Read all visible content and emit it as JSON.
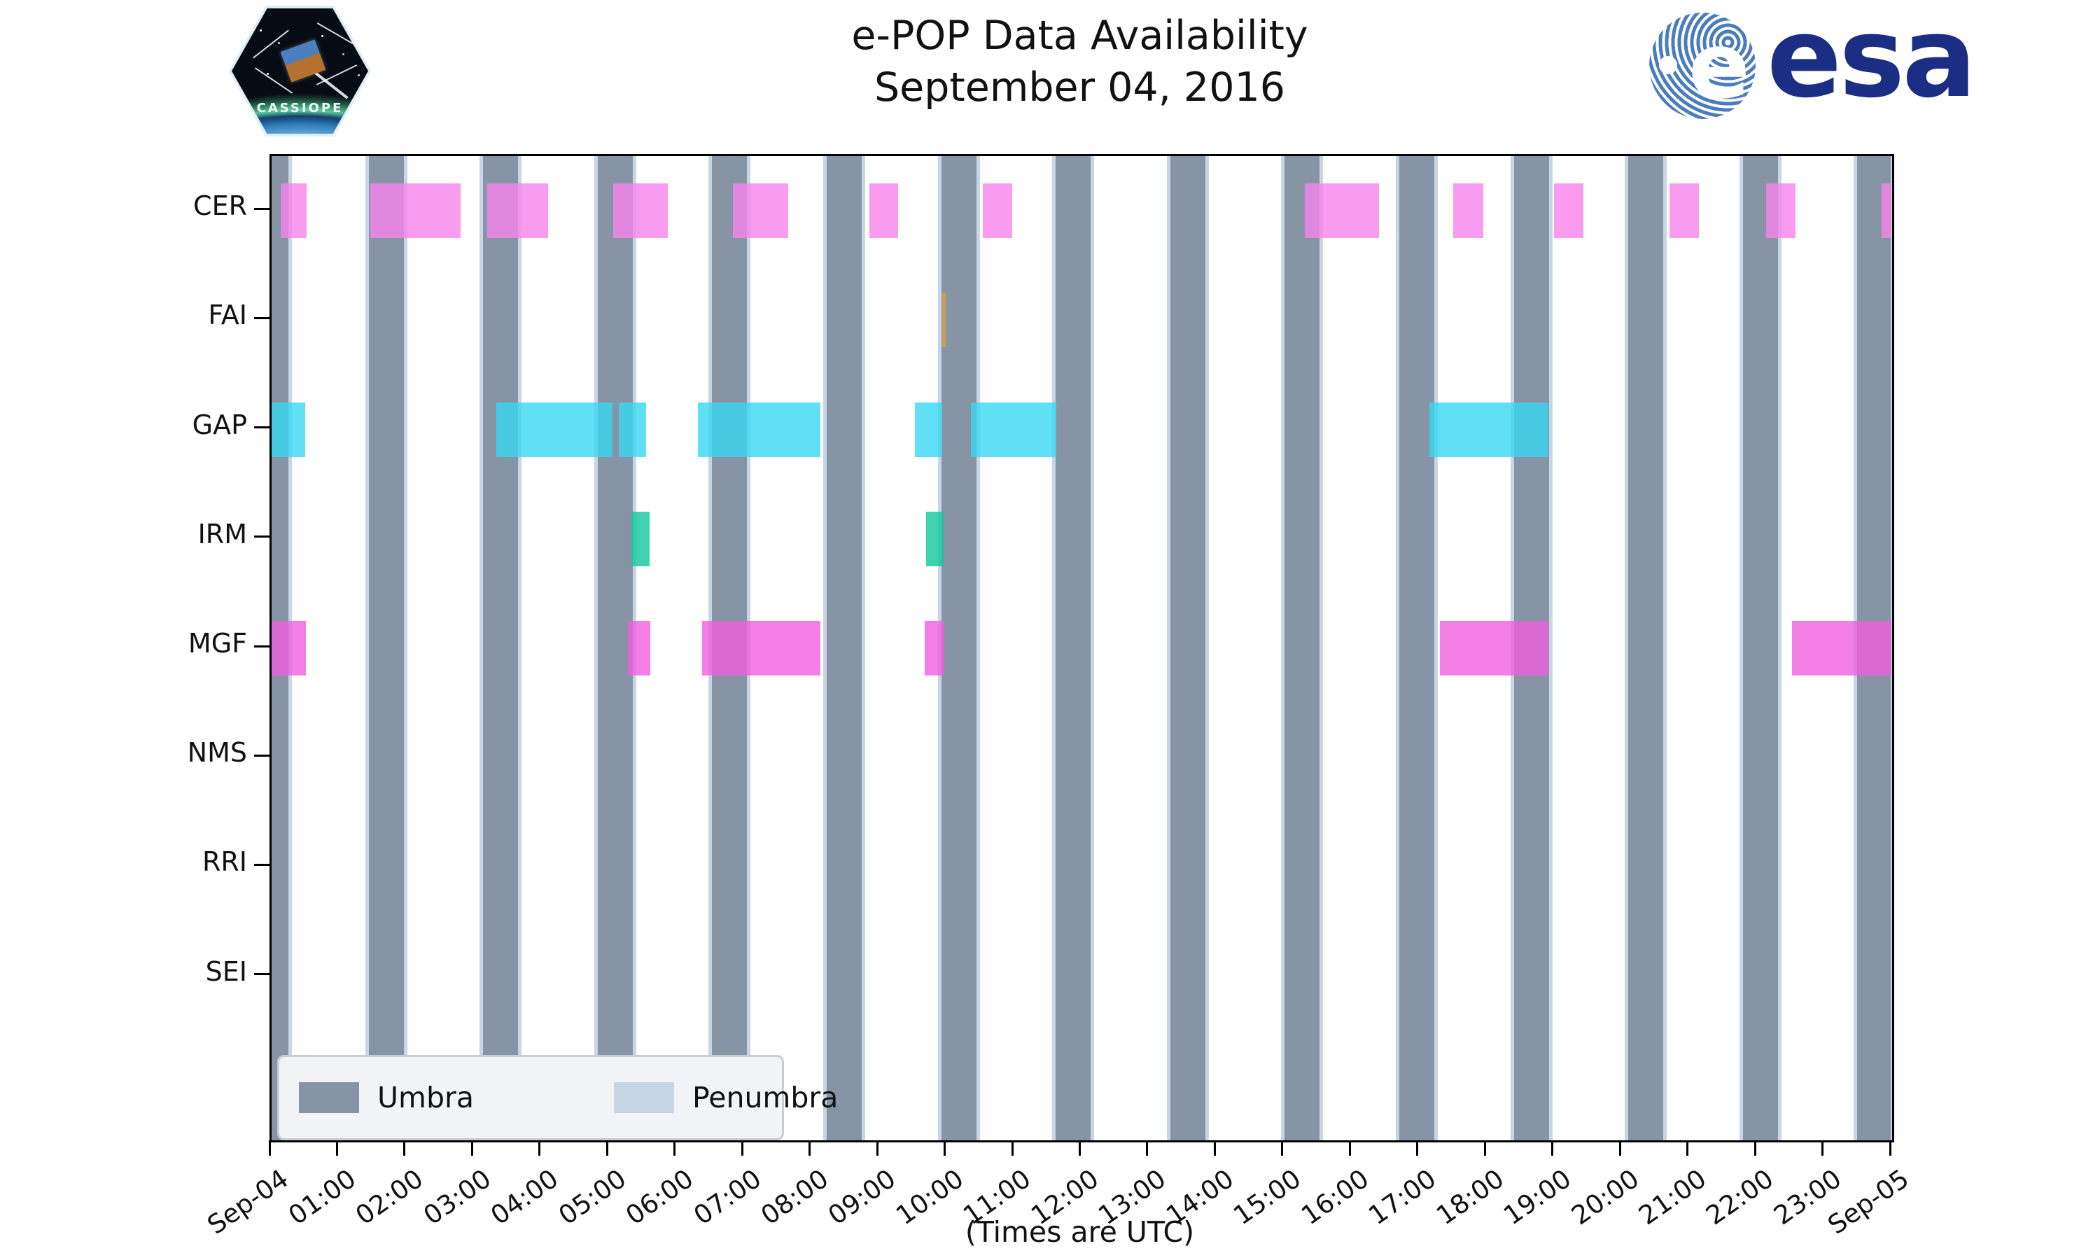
{
  "header": {
    "title_line1": "e-POP Data Availability",
    "title_line2": "September 04, 2016"
  },
  "logos": {
    "cassiope_text": "CASSIOPE",
    "esa_globe_letter": "e",
    "esa_text": "esa"
  },
  "chart_data": {
    "type": "timeline",
    "title": "e-POP Data Availability",
    "subtitle": "September 04, 2016",
    "xlabel": "(Times are UTC)",
    "x_range_hours": [
      0,
      24
    ],
    "x_tick_labels": [
      "Sep-04",
      "01:00",
      "02:00",
      "03:00",
      "04:00",
      "05:00",
      "06:00",
      "07:00",
      "08:00",
      "09:00",
      "10:00",
      "11:00",
      "12:00",
      "13:00",
      "14:00",
      "15:00",
      "16:00",
      "17:00",
      "18:00",
      "19:00",
      "20:00",
      "21:00",
      "22:00",
      "23:00",
      "Sep-05"
    ],
    "grid": false,
    "legend_position": "lower left",
    "colors": {
      "umbra": "#8694A6",
      "penumbra": "#C8D5E4",
      "cer": "#F783EC",
      "fai": "#D9A33C",
      "gap": "#39D7F2",
      "irm": "#0FC79B",
      "mgf": "#EF5EE0",
      "axis": "#000000"
    },
    "umbra_intervals": [
      [
        0.0,
        0.25
      ],
      [
        1.44,
        1.96
      ],
      [
        3.13,
        3.65
      ],
      [
        4.83,
        5.35
      ],
      [
        6.52,
        7.04
      ],
      [
        8.22,
        8.74
      ],
      [
        9.92,
        10.44
      ],
      [
        11.61,
        12.13
      ],
      [
        13.31,
        13.83
      ],
      [
        15.0,
        15.52
      ],
      [
        16.7,
        17.22
      ],
      [
        18.4,
        18.92
      ],
      [
        20.09,
        20.61
      ],
      [
        21.79,
        22.31
      ],
      [
        23.48,
        23.98
      ]
    ],
    "penumbra_edge_hours": 0.05,
    "rows": [
      {
        "label": "CER",
        "color": "#F783EC",
        "intervals": [
          [
            0.13,
            0.52
          ],
          [
            1.46,
            2.8
          ],
          [
            3.19,
            4.1
          ],
          [
            5.06,
            5.87
          ],
          [
            6.83,
            7.65
          ],
          [
            8.85,
            9.28
          ],
          [
            10.53,
            10.97
          ],
          [
            15.3,
            16.4
          ],
          [
            17.5,
            17.95
          ],
          [
            18.99,
            19.43
          ],
          [
            20.7,
            21.14
          ],
          [
            22.13,
            22.57
          ],
          [
            23.84,
            23.99
          ]
        ]
      },
      {
        "label": "FAI",
        "color": "#D9A33C",
        "intervals": [
          [
            9.93,
            9.98
          ]
        ]
      },
      {
        "label": "GAP",
        "color": "#39D7F2",
        "intervals": [
          [
            0.0,
            0.5
          ],
          [
            3.33,
            5.05
          ],
          [
            5.14,
            5.55
          ],
          [
            6.31,
            8.13
          ],
          [
            9.53,
            9.93
          ],
          [
            10.36,
            11.62
          ],
          [
            17.15,
            18.91
          ]
        ]
      },
      {
        "label": "IRM",
        "color": "#0FC79B",
        "intervals": [
          [
            5.33,
            5.6
          ],
          [
            9.69,
            9.95
          ]
        ]
      },
      {
        "label": "MGF",
        "color": "#EF5EE0",
        "intervals": [
          [
            0.0,
            0.51
          ],
          [
            5.28,
            5.61
          ],
          [
            6.38,
            8.13
          ],
          [
            9.67,
            9.96
          ],
          [
            17.3,
            18.91
          ],
          [
            22.52,
            23.99
          ]
        ]
      },
      {
        "label": "NMS",
        "color": "#CCCCCC",
        "intervals": []
      },
      {
        "label": "RRI",
        "color": "#CCCCCC",
        "intervals": []
      },
      {
        "label": "SEI",
        "color": "#CCCCCC",
        "intervals": []
      }
    ],
    "legend": {
      "umbra_label": "Umbra",
      "penumbra_label": "Penumbra"
    }
  }
}
